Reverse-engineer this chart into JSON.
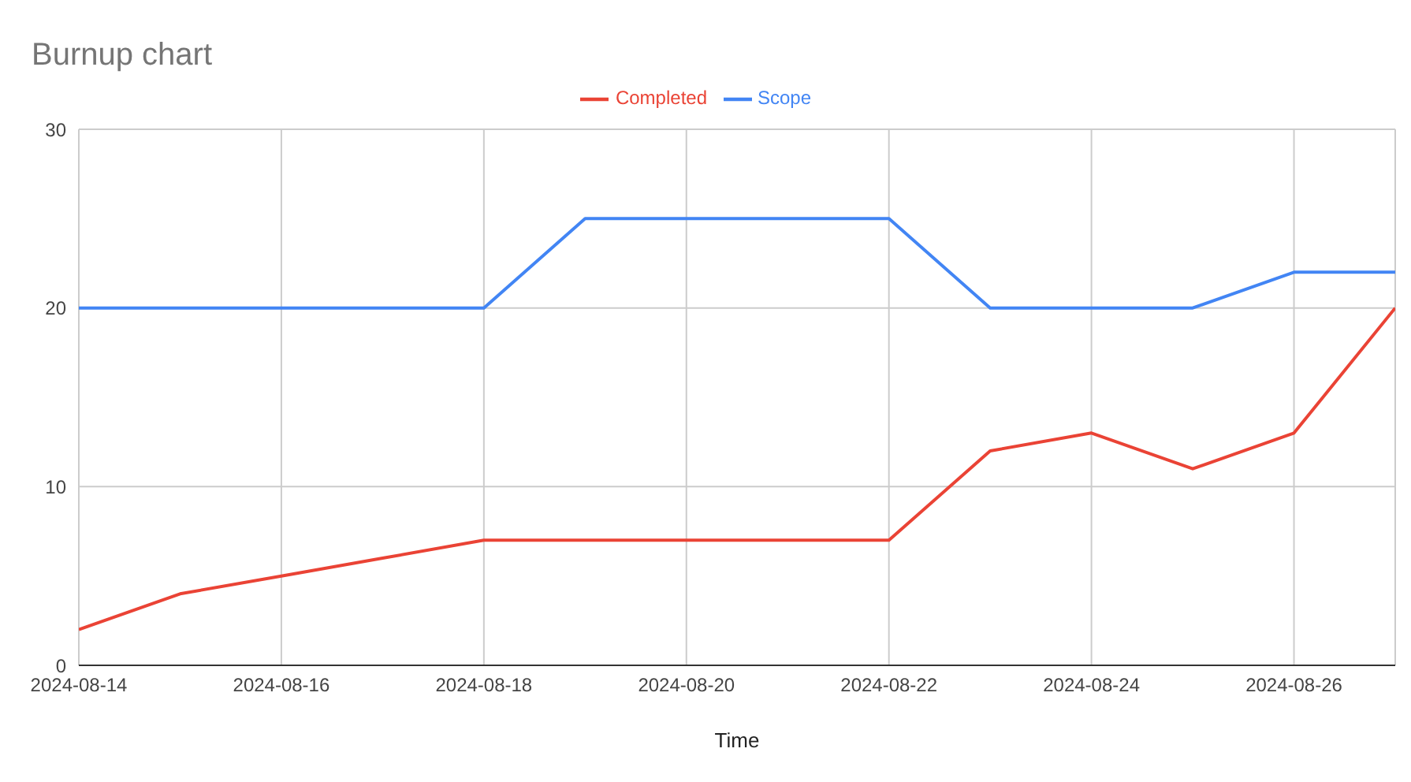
{
  "chart_data": {
    "type": "line",
    "title": "Burnup chart",
    "xlabel": "Time",
    "x": [
      "2024-08-14",
      "2024-08-15",
      "2024-08-16",
      "2024-08-17",
      "2024-08-18",
      "2024-08-19",
      "2024-08-20",
      "2024-08-21",
      "2024-08-22",
      "2024-08-23",
      "2024-08-24",
      "2024-08-25",
      "2024-08-26",
      "2024-08-27"
    ],
    "series": [
      {
        "name": "Scope",
        "color": "#4285f4",
        "values": [
          20,
          20,
          20,
          20,
          20,
          25,
          25,
          25,
          25,
          20,
          20,
          20,
          22,
          22
        ]
      },
      {
        "name": "Completed",
        "color": "#ea4335",
        "values": [
          2,
          4,
          5,
          6,
          7,
          7,
          7,
          7,
          7,
          12,
          13,
          11,
          13,
          20
        ]
      }
    ],
    "xlim": [
      "2024-08-14",
      "2024-08-27"
    ],
    "xticks": [
      "2024-08-14",
      "2024-08-16",
      "2024-08-18",
      "2024-08-20",
      "2024-08-22",
      "2024-08-24",
      "2024-08-26"
    ],
    "ylim": [
      0,
      30
    ],
    "yticks": [
      0,
      10,
      20,
      30
    ],
    "grid": true,
    "legend": "top",
    "marker": "none",
    "line_style": "solid"
  }
}
